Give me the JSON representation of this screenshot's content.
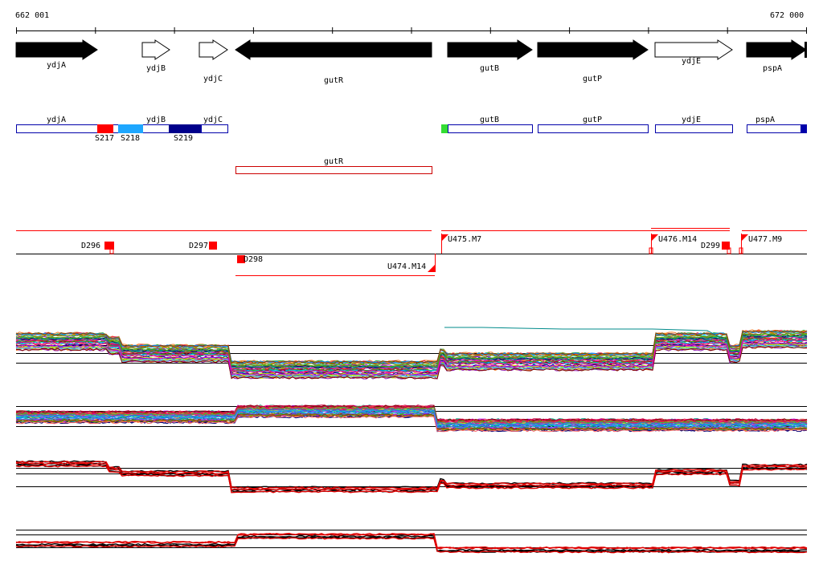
{
  "coordinates": {
    "start": "662 001",
    "end": "672 000"
  },
  "genes": [
    {
      "name": "ydjA",
      "strand": "+",
      "fill": "black"
    },
    {
      "name": "ydjB",
      "strand": "+",
      "fill": "white"
    },
    {
      "name": "ydjC",
      "strand": "+",
      "fill": "white"
    },
    {
      "name": "gutR",
      "strand": "-",
      "fill": "black"
    },
    {
      "name": "gutB",
      "strand": "+",
      "fill": "black"
    },
    {
      "name": "gutP",
      "strand": "+",
      "fill": "black"
    },
    {
      "name": "ydjE",
      "strand": "+",
      "fill": "white"
    },
    {
      "name": "pspA",
      "strand": "+",
      "fill": "black"
    }
  ],
  "upper_boxes": [
    {
      "name": "ydjA"
    },
    {
      "name": "ydjB"
    },
    {
      "name": "ydjC"
    },
    {
      "name": "gutB"
    },
    {
      "name": "gutP"
    },
    {
      "name": "ydjE"
    },
    {
      "name": "pspA"
    }
  ],
  "segments": [
    {
      "name": "S217",
      "color": "#ff0000"
    },
    {
      "name": "S218",
      "color": "#1ea7ff"
    },
    {
      "name": "S219",
      "color": "#00008b"
    }
  ],
  "lower_boxes": [
    {
      "name": "gutR",
      "color": "#cc0000"
    }
  ],
  "features_plus": [
    {
      "name": "D296"
    },
    {
      "name": "D297"
    },
    {
      "name": "U475.M7"
    },
    {
      "name": "U476.M14"
    },
    {
      "name": "D299"
    },
    {
      "name": "U477.M9"
    }
  ],
  "features_minus": [
    {
      "name": "D298"
    },
    {
      "name": "U474.M14"
    }
  ],
  "colors": {
    "gene_outline": "#0000aa",
    "feature": "#ff0000",
    "baseline": "#000000"
  },
  "tracks": [
    {
      "id": "multi-1",
      "style": "many-colored-lines"
    },
    {
      "id": "multi-2",
      "style": "many-colored-lines"
    },
    {
      "id": "pair-1",
      "style": "black-and-red"
    },
    {
      "id": "pair-2",
      "style": "black-and-red"
    }
  ]
}
